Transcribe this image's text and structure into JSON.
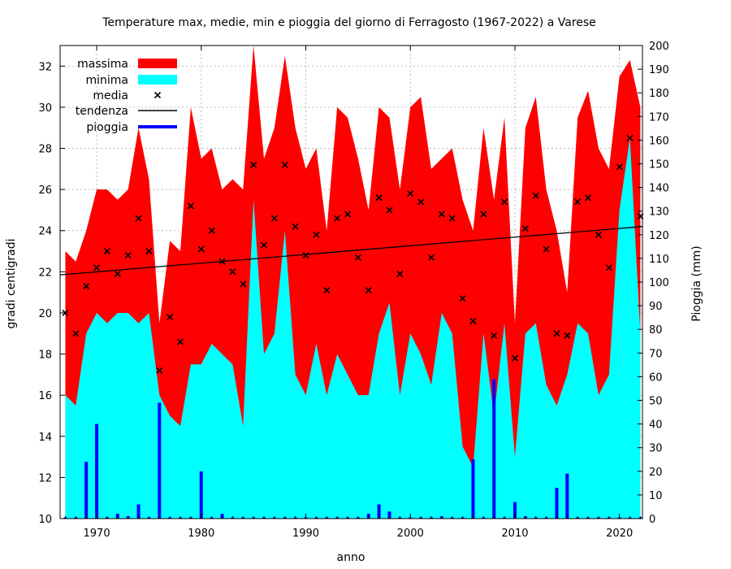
{
  "chart_data": {
    "type": "area",
    "title": "Temperature max, medie, min e pioggia del giorno di Ferragosto (1967-2022) a Varese",
    "xlabel": "anno",
    "ylabel": "gradi centigradi",
    "y2label": "Pioggia (mm)",
    "xlim": [
      1966.5,
      2022.2
    ],
    "ylim": [
      10,
      33
    ],
    "y2lim": [
      0,
      200
    ],
    "x_ticks": [
      1970,
      1980,
      1990,
      2000,
      2010,
      2020
    ],
    "y_ticks": [
      10,
      12,
      14,
      16,
      18,
      20,
      22,
      24,
      26,
      28,
      30,
      32
    ],
    "y2_ticks": [
      0,
      10,
      20,
      30,
      40,
      50,
      60,
      70,
      80,
      90,
      100,
      110,
      120,
      130,
      140,
      150,
      160,
      170,
      180,
      190,
      200
    ],
    "grid": true,
    "legend_position": "top-left",
    "colors": {
      "massima": "#ff0000",
      "minima": "#00ffff",
      "media": "#000000",
      "tendenza": "#000000",
      "pioggia": "#0000ff"
    },
    "years": [
      1967,
      1968,
      1969,
      1970,
      1971,
      1972,
      1973,
      1974,
      1975,
      1976,
      1977,
      1978,
      1979,
      1980,
      1981,
      1982,
      1983,
      1984,
      1985,
      1986,
      1987,
      1988,
      1989,
      1990,
      1991,
      1992,
      1993,
      1994,
      1995,
      1996,
      1997,
      1998,
      1999,
      2000,
      2001,
      2002,
      2003,
      2004,
      2005,
      2006,
      2007,
      2008,
      2009,
      2010,
      2011,
      2012,
      2013,
      2014,
      2015,
      2016,
      2017,
      2018,
      2019,
      2020,
      2021,
      2022
    ],
    "series": [
      {
        "name": "massima",
        "values": [
          23.0,
          22.5,
          24.0,
          26.0,
          26.0,
          25.5,
          26.0,
          29.0,
          26.5,
          19.5,
          23.5,
          23.0,
          30.0,
          27.5,
          28.0,
          26.0,
          26.5,
          26.0,
          33.0,
          27.5,
          29.0,
          32.5,
          29.0,
          27.0,
          28.0,
          24.0,
          30.0,
          29.5,
          27.5,
          25.0,
          30.0,
          29.5,
          26.0,
          30.0,
          30.5,
          27.0,
          27.5,
          28.0,
          25.5,
          24.0,
          29.0,
          25.5,
          29.5,
          19.5,
          29.0,
          30.5,
          26.0,
          24.0,
          21.0,
          29.5,
          30.8,
          28.0,
          27.0,
          31.5,
          32.3,
          30.0
        ]
      },
      {
        "name": "minima",
        "values": [
          16.0,
          15.5,
          19.0,
          20.0,
          19.5,
          20.0,
          20.0,
          19.5,
          20.0,
          16.0,
          15.0,
          14.5,
          17.5,
          17.5,
          18.5,
          18.0,
          17.5,
          14.5,
          25.5,
          18.0,
          19.0,
          24.0,
          17.0,
          16.0,
          18.5,
          16.0,
          18.0,
          17.0,
          16.0,
          16.0,
          19.0,
          20.5,
          16.0,
          19.0,
          18.0,
          16.5,
          20.0,
          19.0,
          13.5,
          12.5,
          19.0,
          15.0,
          19.5,
          13.0,
          19.0,
          19.5,
          16.5,
          15.5,
          17.0,
          19.5,
          19.0,
          16.0,
          17.0,
          25.0,
          28.5,
          19.0
        ]
      },
      {
        "name": "media",
        "values": [
          20.0,
          19.0,
          21.3,
          22.2,
          23.0,
          21.9,
          22.8,
          24.6,
          23.0,
          17.2,
          19.8,
          18.6,
          25.2,
          23.1,
          24.0,
          22.5,
          22.0,
          21.4,
          27.2,
          23.3,
          24.6,
          27.2,
          24.2,
          22.8,
          23.8,
          21.1,
          24.6,
          24.8,
          22.7,
          21.1,
          25.6,
          25.0,
          21.9,
          25.8,
          25.4,
          22.7,
          24.8,
          24.6,
          20.7,
          19.6,
          24.8,
          18.9,
          25.4,
          17.8,
          24.1,
          25.7,
          23.1,
          19.0,
          18.9,
          25.4,
          25.6,
          23.8,
          22.2,
          27.1,
          28.5,
          24.7
        ]
      },
      {
        "name": "tendenza",
        "values": [
          21.85,
          24.2
        ]
      },
      {
        "name": "pioggia",
        "values": [
          0,
          0,
          24,
          40,
          0,
          2,
          1,
          6,
          0,
          49,
          0,
          0,
          0,
          20,
          0,
          2,
          0,
          0,
          0,
          0,
          0,
          0,
          0,
          0,
          0,
          0,
          0,
          0,
          0,
          2,
          6,
          3,
          0,
          0,
          0,
          0,
          1,
          0,
          0,
          25,
          0,
          59,
          0,
          7,
          1,
          0,
          0,
          13,
          19,
          0,
          0,
          0,
          0,
          0,
          0,
          0
        ]
      }
    ]
  }
}
